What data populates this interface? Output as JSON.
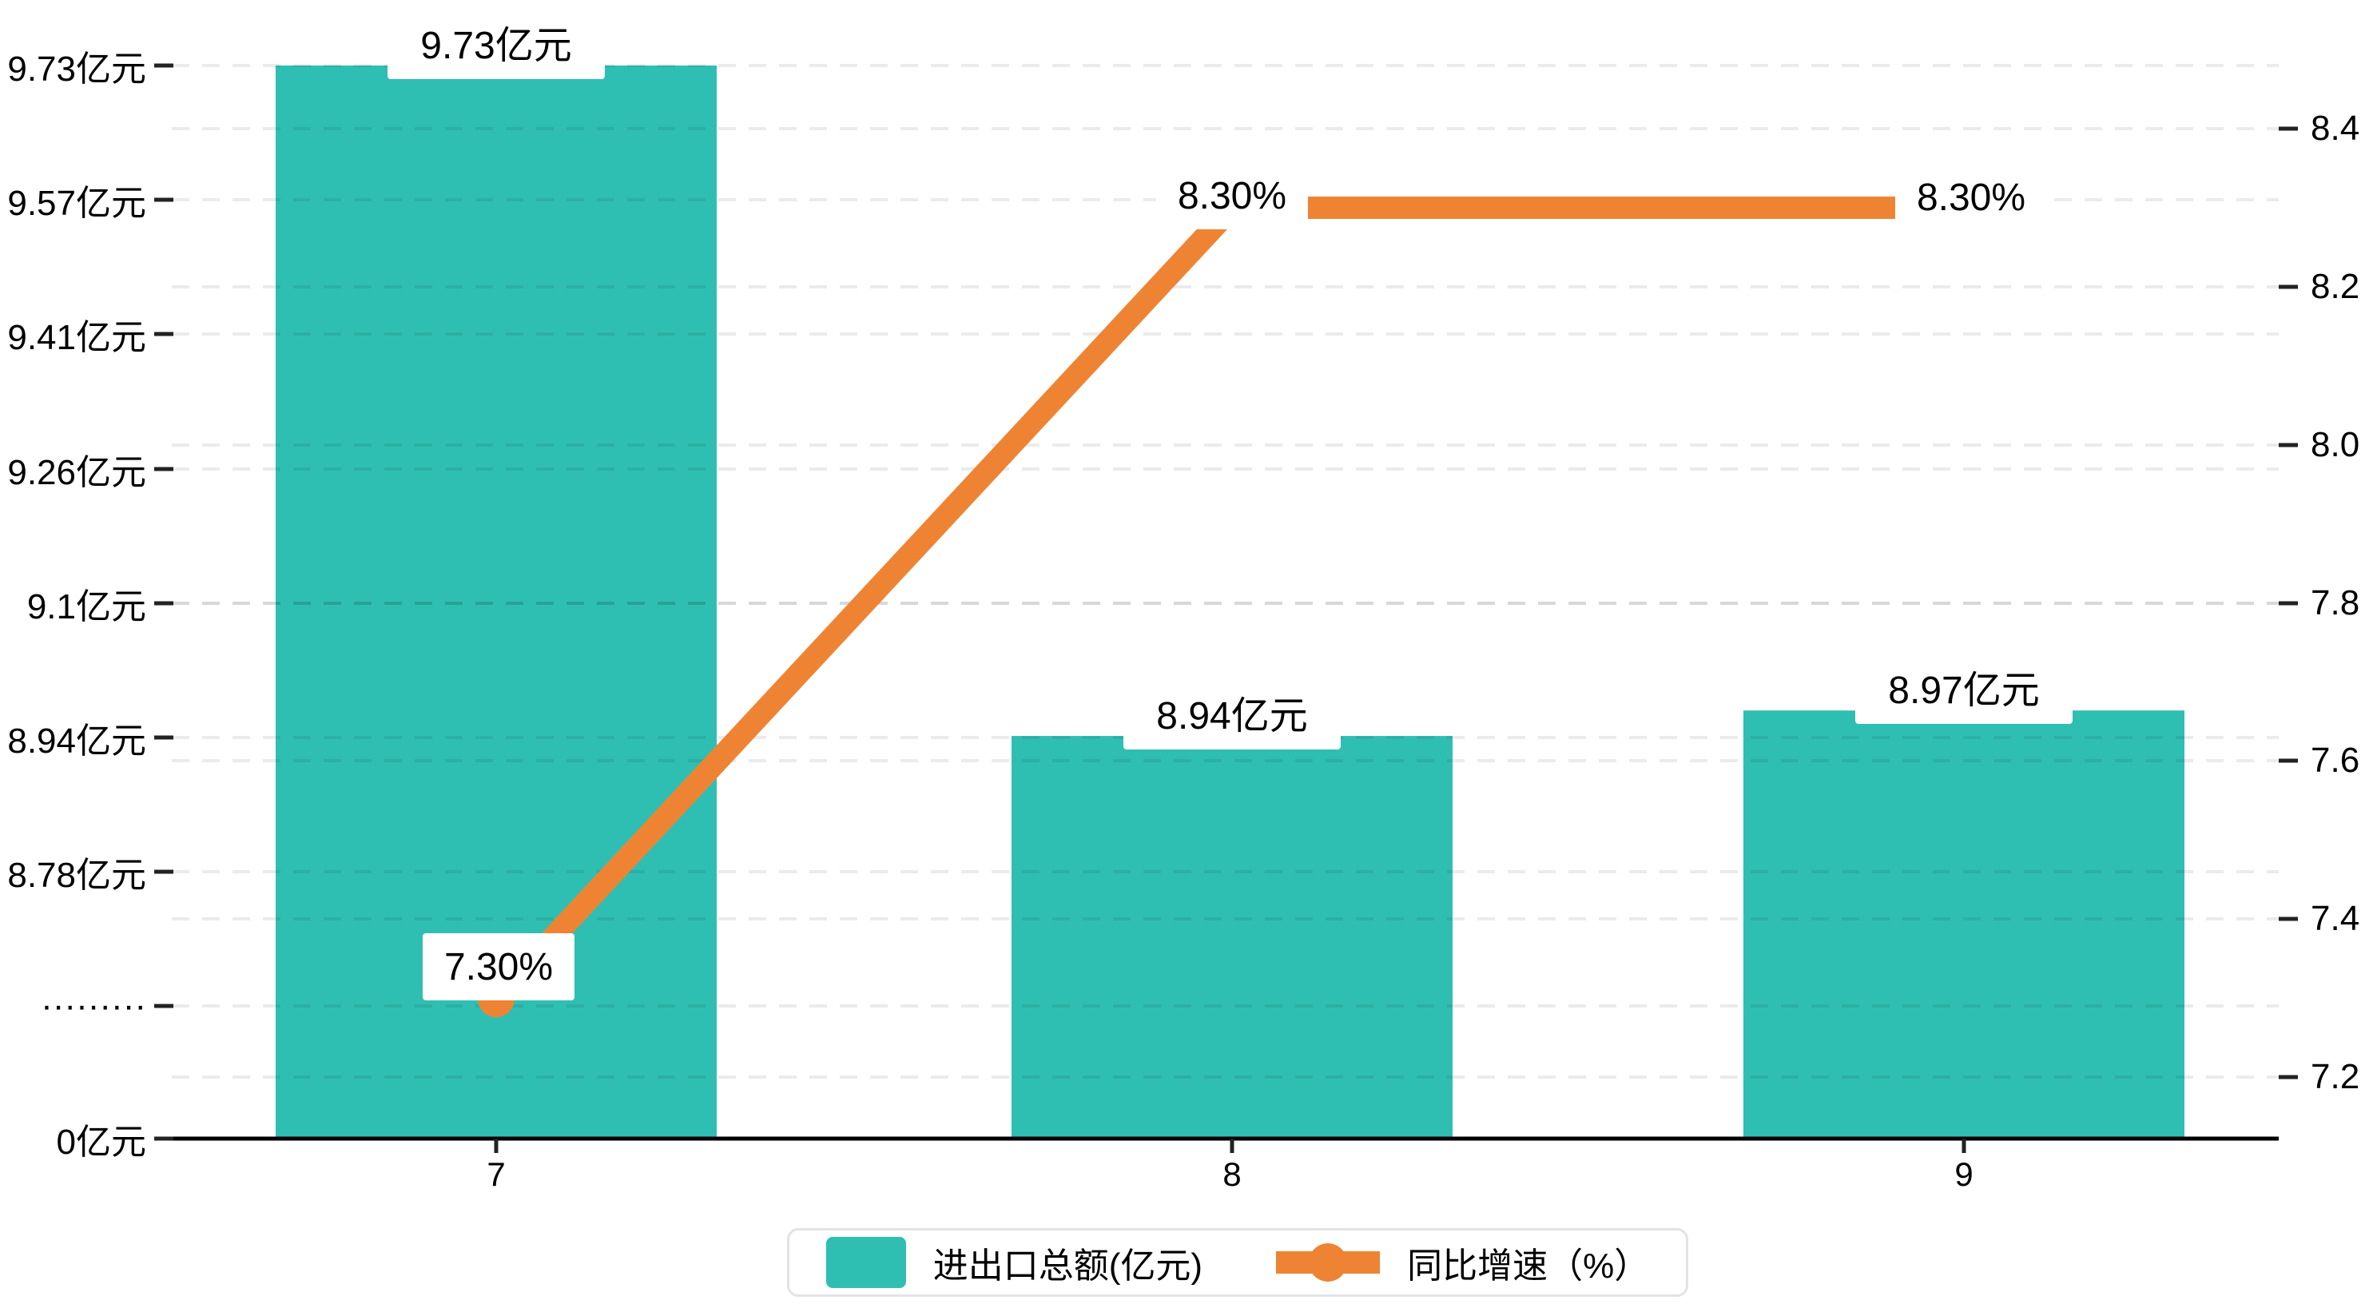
{
  "chart_data": {
    "type": "combo-bar-line-dual-axis",
    "categories": [
      "7",
      "8",
      "9"
    ],
    "series": [
      {
        "name": "进出口总额(亿元)",
        "type": "bar",
        "axis": "left",
        "values": [
          9.73,
          8.94,
          8.97
        ],
        "labels": [
          "9.73亿元",
          "8.94亿元",
          "8.97亿元"
        ]
      },
      {
        "name": "同比增速（%）",
        "type": "line",
        "axis": "right",
        "values": [
          7.3,
          8.3,
          8.3
        ],
        "labels": [
          "7.30%",
          "8.30%",
          "8.30%"
        ]
      }
    ],
    "left_axis": {
      "tick_labels": [
        "9.73亿元",
        "9.57亿元",
        "9.41亿元",
        "9.26亿元",
        "9.1亿元",
        "8.94亿元",
        "8.78亿元",
        "·········",
        "0亿元"
      ],
      "tick_values": [
        9.73,
        9.57,
        9.41,
        9.26,
        9.1,
        8.94,
        8.78,
        null,
        0
      ],
      "has_break": true
    },
    "right_axis": {
      "tick_labels": [
        "8.4",
        "8.2",
        "8.0",
        "7.8",
        "7.6",
        "7.4",
        "7.2"
      ],
      "tick_values": [
        8.4,
        8.2,
        8.0,
        7.8,
        7.6,
        7.4,
        7.2
      ],
      "range": [
        7.2,
        8.4
      ]
    },
    "x_axis": {
      "tick_labels": [
        "7",
        "8",
        "9"
      ]
    },
    "legend": {
      "items": [
        {
          "label": "进出口总额(亿元)",
          "marker": "bar-swatch"
        },
        {
          "label": "同比增速（%）",
          "marker": "line-dot"
        }
      ]
    },
    "colors": {
      "bar": "#2FBFB2",
      "line": "#EE8433",
      "grid": "rgba(0,0,0,0.08)",
      "axis": "#000000",
      "text": "#000000",
      "label_bg": "#ffffff"
    },
    "grid": "dashed",
    "legend_position": "bottom-center"
  }
}
